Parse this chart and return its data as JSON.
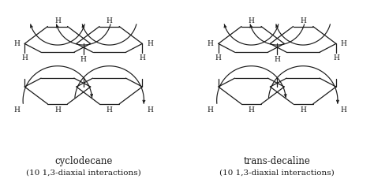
{
  "title_left": "cyclodecane",
  "subtitle_left": "(10 1,3-diaxial interactions)",
  "title_right": "trans-decaline",
  "subtitle_right": "(10 1,3-diaxial interactions)",
  "bg_color": "#ffffff",
  "line_color": "#1a1a1a",
  "title_fontsize": 8.5,
  "subtitle_fontsize": 7.5
}
